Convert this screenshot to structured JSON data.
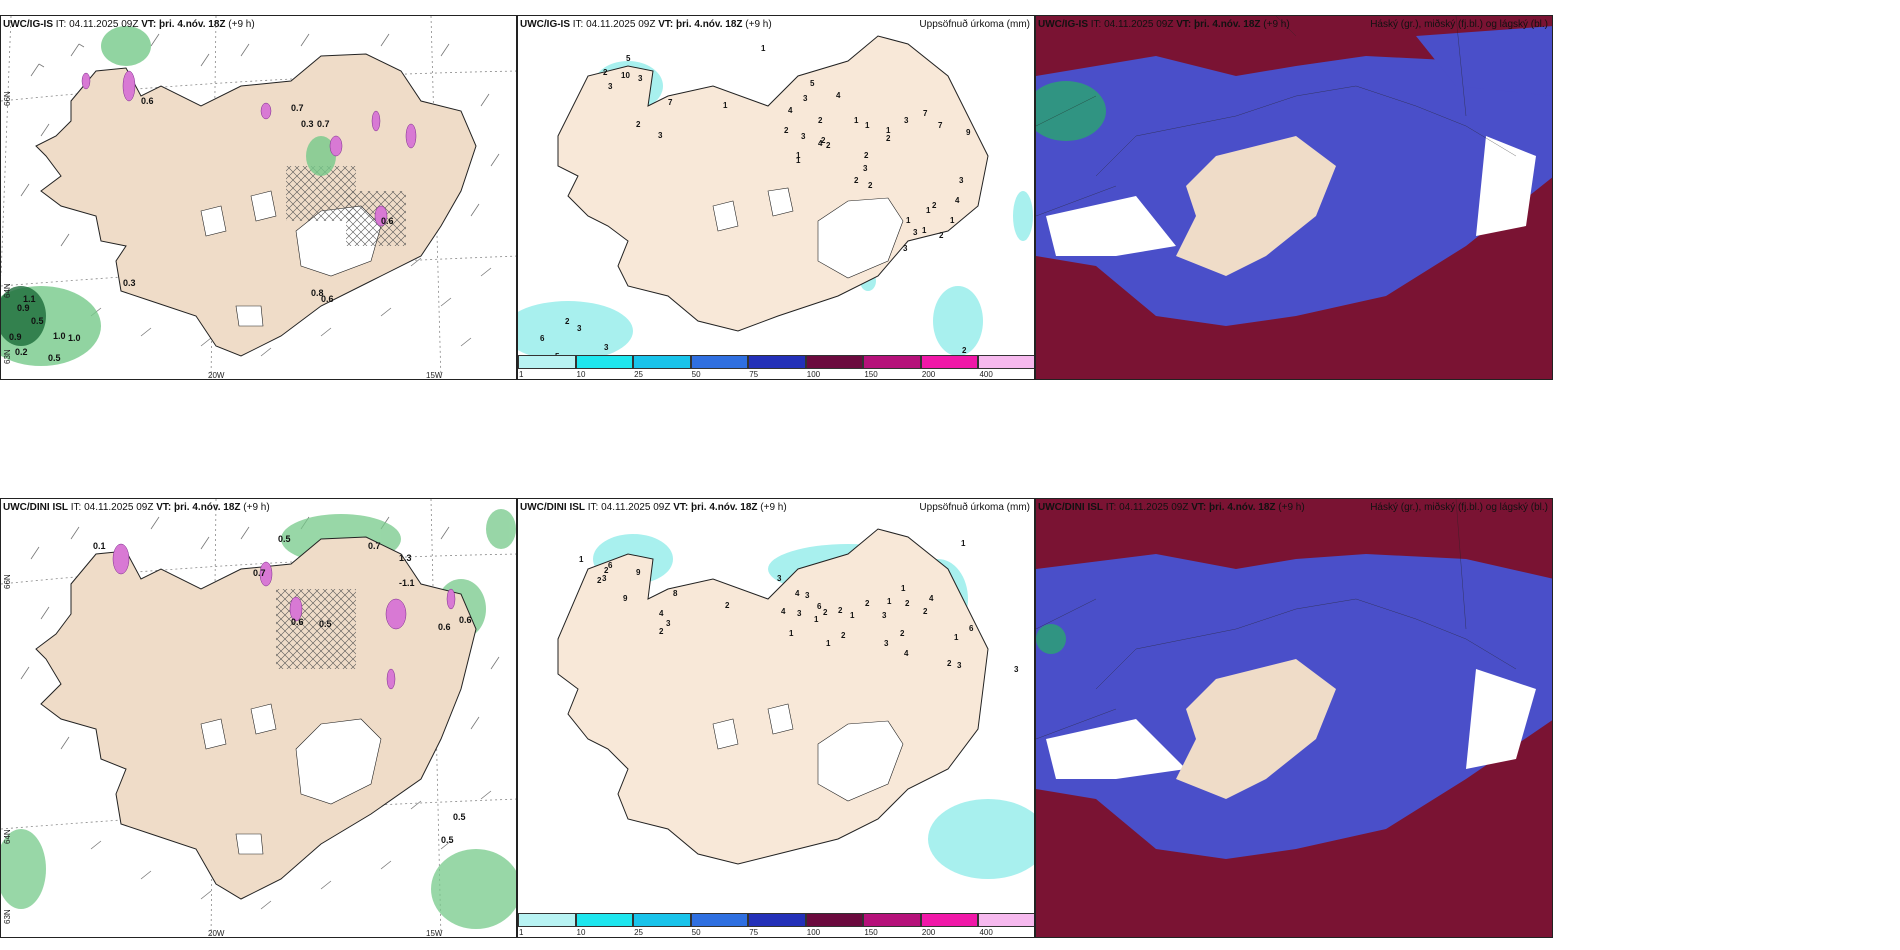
{
  "colors": {
    "land": "#efdcc8",
    "sea": "#ffffff",
    "precip_light": "#a8f0ee",
    "cloud_high": "#7a1333",
    "cloud_mid": "#4a4fc9",
    "green": "#76c98a",
    "snow_pink": "#d879d4"
  },
  "panels": [
    {
      "model": "UWC/IG-IS",
      "it_label": "IT:",
      "it": "04.11.2025 09Z",
      "vt_label": "VT:",
      "vt": "þri. 4.nóv. 18Z",
      "lead": "(+9 h)",
      "title": ""
    },
    {
      "model": "UWC/IG-IS",
      "it_label": "IT:",
      "it": "04.11.2025 09Z",
      "vt_label": "VT:",
      "vt": "þri. 4.nóv. 18Z",
      "lead": "(+9 h)",
      "title": "Uppsöfnuð úrkoma (mm)"
    },
    {
      "model": "UWC/IG-IS",
      "it_label": "IT:",
      "it": "04.11.2025 09Z",
      "vt_label": "VT:",
      "vt": "þri. 4.nóv. 18Z",
      "lead": "(+9 h)",
      "title": "Háský (gr.), miðský (fj.bl.) og lágský (bl.)"
    },
    {
      "model": "UWC/DINI ISL",
      "it_label": "IT:",
      "it": "04.11.2025 09Z",
      "vt_label": "VT:",
      "vt": "þri. 4.nóv. 18Z",
      "lead": "(+9 h)",
      "title": ""
    },
    {
      "model": "UWC/DINI ISL",
      "it_label": "IT:",
      "it": "04.11.2025 09Z",
      "vt_label": "VT:",
      "vt": "þri. 4.nóv. 18Z",
      "lead": "(+9 h)",
      "title": "Uppsöfnuð úrkoma (mm)"
    },
    {
      "model": "UWC/DINI ISL",
      "it_label": "IT:",
      "it": "04.11.2025 09Z",
      "vt_label": "VT:",
      "vt": "þri. 4.nóv. 18Z",
      "lead": "(+9 h)",
      "title": "Háský (gr.), miðský (fj.bl.) og lágský (bl.)"
    }
  ],
  "axis": {
    "lon_20w": "20W",
    "lon_15w": "15W",
    "lat_66n": "66N",
    "lat_64n": "64N",
    "lat_63n": "63N"
  },
  "colorbar": {
    "ticks": [
      "1",
      "10",
      "25",
      "50",
      "75",
      "100",
      "150",
      "200",
      "400"
    ],
    "colors": [
      "#b8f3f3",
      "#1ee6ee",
      "#19c3ea",
      "#2f6fe0",
      "#2330b8",
      "#6b0a3e",
      "#b5117a",
      "#f018a8",
      "#f6b9ee"
    ]
  },
  "values_top_left": [
    "0.6",
    "0.7",
    "0.3",
    "0.7",
    "0.3",
    "0.8",
    "0.6",
    "0.6",
    "1.1",
    "0.9",
    "0.5",
    "0.9",
    "1.0",
    "1.0",
    "0.2",
    "0.5"
  ],
  "values_bottom_left": [
    "0.1",
    "0.5",
    "0.7",
    "1.3",
    "-1.1",
    "0.7",
    "0.6",
    "0.5",
    "0.6",
    "0.6",
    "0.5",
    "0.5"
  ],
  "precip_top": [
    "1",
    "10",
    "5",
    "2",
    "3",
    "3",
    "7",
    "2",
    "3",
    "1",
    "3",
    "5",
    "4",
    "4",
    "2",
    "3",
    "2",
    "1",
    "1",
    "2",
    "2",
    "7",
    "1",
    "4",
    "2",
    "9",
    "3",
    "7",
    "1",
    "2",
    "3",
    "1",
    "2",
    "1",
    "1",
    "1",
    "2",
    "3",
    "4",
    "2",
    "1",
    "2",
    "3",
    "3",
    "6",
    "2",
    "3",
    "5",
    "3",
    "2"
  ],
  "precip_bottom": [
    "1",
    "1",
    "9",
    "6",
    "2",
    "8",
    "3",
    "2",
    "9",
    "4",
    "3",
    "2",
    "2",
    "3",
    "4",
    "3",
    "4",
    "3",
    "6",
    "2",
    "2",
    "1",
    "2",
    "3",
    "2",
    "4",
    "2",
    "1",
    "1",
    "1",
    "1",
    "6",
    "1",
    "3",
    "2",
    "1",
    "4",
    "2",
    "2",
    "3",
    "3"
  ]
}
